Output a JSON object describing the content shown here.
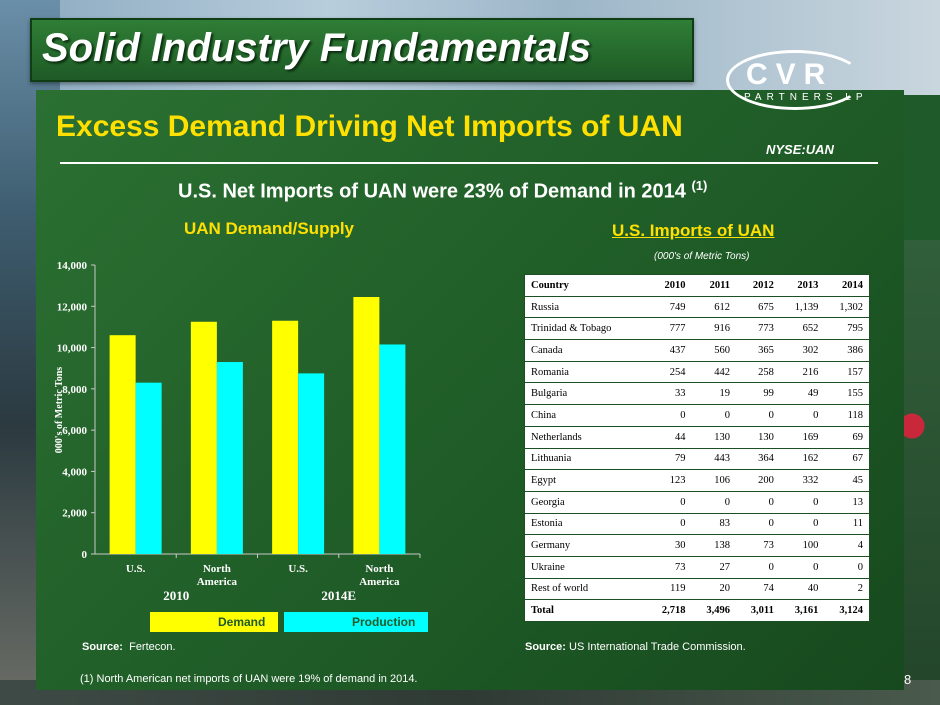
{
  "slide": {
    "title": "Solid Industry Fundamentals",
    "subtitle": "Excess Demand Driving Net Imports of UAN",
    "headline": "U.S. Net Imports of UAN were 23% of Demand in 2014",
    "headline_note": "(1)",
    "logo_main": "CVR",
    "logo_sub": "PARTNERS LP",
    "ticker": "NYSE:UAN",
    "page_number": "8",
    "footnote": "(1)  North American net imports of UAN were 19% of demand in 2014."
  },
  "chart_data": {
    "type": "bar",
    "title": "UAN Demand/Supply",
    "ylabel": "000's of Metric Tons",
    "ylim": [
      0,
      14000
    ],
    "yticks": [
      0,
      2000,
      4000,
      6000,
      8000,
      10000,
      12000,
      14000
    ],
    "ytick_labels": [
      "0",
      "2,000",
      "4,000",
      "6,000",
      "8,000",
      "10,000",
      "12,000",
      "14,000"
    ],
    "categories": [
      "U.S.",
      "North America",
      "U.S.",
      "North America"
    ],
    "category_lines": [
      [
        "U.S."
      ],
      [
        "North",
        "America"
      ],
      [
        "U.S."
      ],
      [
        "North",
        "America"
      ]
    ],
    "groups": [
      {
        "label": "2010",
        "categories": [
          0,
          1
        ]
      },
      {
        "label": "2014E",
        "categories": [
          2,
          3
        ]
      }
    ],
    "series": [
      {
        "name": "Demand",
        "color": "#ffff00",
        "values": [
          10600,
          11250,
          11300,
          12450
        ]
      },
      {
        "name": "Production",
        "color": "#00ffff",
        "values": [
          8300,
          9300,
          8750,
          10150
        ]
      }
    ],
    "grid": false,
    "legend": "bottom",
    "source_label": "Source:",
    "source_text": "Fertecon."
  },
  "imports_table": {
    "title": "U.S. Imports of UAN",
    "units": "(000's of Metric Tons)",
    "columns": [
      "Country",
      "2010",
      "2011",
      "2012",
      "2013",
      "2014"
    ],
    "rows": [
      [
        "Russia",
        "749",
        "612",
        "675",
        "1,139",
        "1,302"
      ],
      [
        "Trinidad & Tobago",
        "777",
        "916",
        "773",
        "652",
        "795"
      ],
      [
        "Canada",
        "437",
        "560",
        "365",
        "302",
        "386"
      ],
      [
        "Romania",
        "254",
        "442",
        "258",
        "216",
        "157"
      ],
      [
        "Bulgaria",
        "33",
        "19",
        "99",
        "49",
        "155"
      ],
      [
        "China",
        "0",
        "0",
        "0",
        "0",
        "118"
      ],
      [
        "Netherlands",
        "44",
        "130",
        "130",
        "169",
        "69"
      ],
      [
        "Lithuania",
        "79",
        "443",
        "364",
        "162",
        "67"
      ],
      [
        "Egypt",
        "123",
        "106",
        "200",
        "332",
        "45"
      ],
      [
        "Georgia",
        "0",
        "0",
        "0",
        "0",
        "13"
      ],
      [
        "Estonia",
        "0",
        "83",
        "0",
        "0",
        "11"
      ],
      [
        "Germany",
        "30",
        "138",
        "73",
        "100",
        "4"
      ],
      [
        "Ukraine",
        "73",
        "27",
        "0",
        "0",
        "0"
      ],
      [
        "Rest of world",
        "119",
        "20",
        "74",
        "40",
        "2"
      ]
    ],
    "total": [
      "Total",
      "2,718",
      "3,496",
      "3,011",
      "3,161",
      "3,124"
    ],
    "source_label": "Source:",
    "source_text": "US International Trade Commission."
  }
}
